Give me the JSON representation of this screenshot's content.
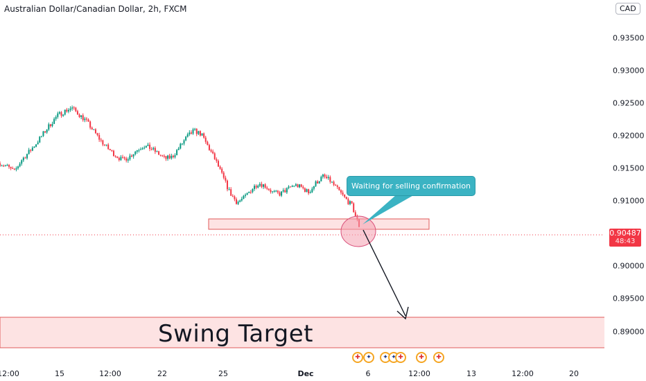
{
  "header": {
    "title": "Australian Dollar/Canadian Dollar, 2h, FXCM"
  },
  "price_axis": {
    "currency": "CAD",
    "ticks": [
      "0.93500",
      "0.93000",
      "0.92500",
      "0.92000",
      "0.91500",
      "0.91000",
      "0.90000",
      "0.89500",
      "0.89000"
    ]
  },
  "time_axis": {
    "ticks": [
      {
        "label": "12:00",
        "bold": false
      },
      {
        "label": "15",
        "bold": false
      },
      {
        "label": "12:00",
        "bold": false
      },
      {
        "label": "22",
        "bold": false
      },
      {
        "label": "25",
        "bold": false
      },
      {
        "label": "Dec",
        "bold": true
      },
      {
        "label": "6",
        "bold": false
      },
      {
        "label": "12:00",
        "bold": false
      },
      {
        "label": "13",
        "bold": false
      },
      {
        "label": "12:00",
        "bold": false
      },
      {
        "label": "20",
        "bold": false
      }
    ]
  },
  "last_price": {
    "price": "0.90487",
    "countdown": "48:43"
  },
  "annotations": {
    "callout": "Waiting for selling confirmation",
    "target_label": "Swing Target"
  },
  "colors": {
    "up": "#089981",
    "down": "#f23645",
    "zone_fill": "#fde3e3",
    "zone_border": "#e05a5a",
    "callout": "#3bb3c3"
  },
  "events": [
    {
      "icon": "canada-flag-icon"
    },
    {
      "icon": "australia-flag-icon"
    },
    {
      "icon": "australia-flag-icon"
    },
    {
      "icon": "australia-flag-icon"
    },
    {
      "icon": "canada-flag-icon"
    },
    {
      "icon": "canada-flag-icon"
    },
    {
      "icon": "canada-flag-icon"
    }
  ],
  "chart_data": {
    "type": "candlestick",
    "title": "Australian Dollar/Canadian Dollar, 2h, FXCM",
    "ylim": [
      0.8875,
      0.939
    ],
    "close_path": [
      0.9145,
      0.914,
      0.9132,
      0.915,
      0.9162,
      0.9175,
      0.919,
      0.9205,
      0.9218,
      0.9225,
      0.923,
      0.922,
      0.921,
      0.9195,
      0.918,
      0.9168,
      0.9158,
      0.915,
      0.9155,
      0.9165,
      0.9172,
      0.9168,
      0.916,
      0.9152,
      0.9155,
      0.917,
      0.9185,
      0.9195,
      0.919,
      0.917,
      0.915,
      0.9125,
      0.91,
      0.9085,
      0.9092,
      0.9105,
      0.9115,
      0.911,
      0.91,
      0.9098,
      0.9105,
      0.9112,
      0.9108,
      0.91,
      0.9115,
      0.9125,
      0.9118,
      0.9105,
      0.9092,
      0.908,
      0.9049
    ],
    "support_zone": [
      0.9059,
      0.9075
    ],
    "target_zone": [
      0.8876,
      0.8922
    ],
    "last_price": 0.90487
  }
}
